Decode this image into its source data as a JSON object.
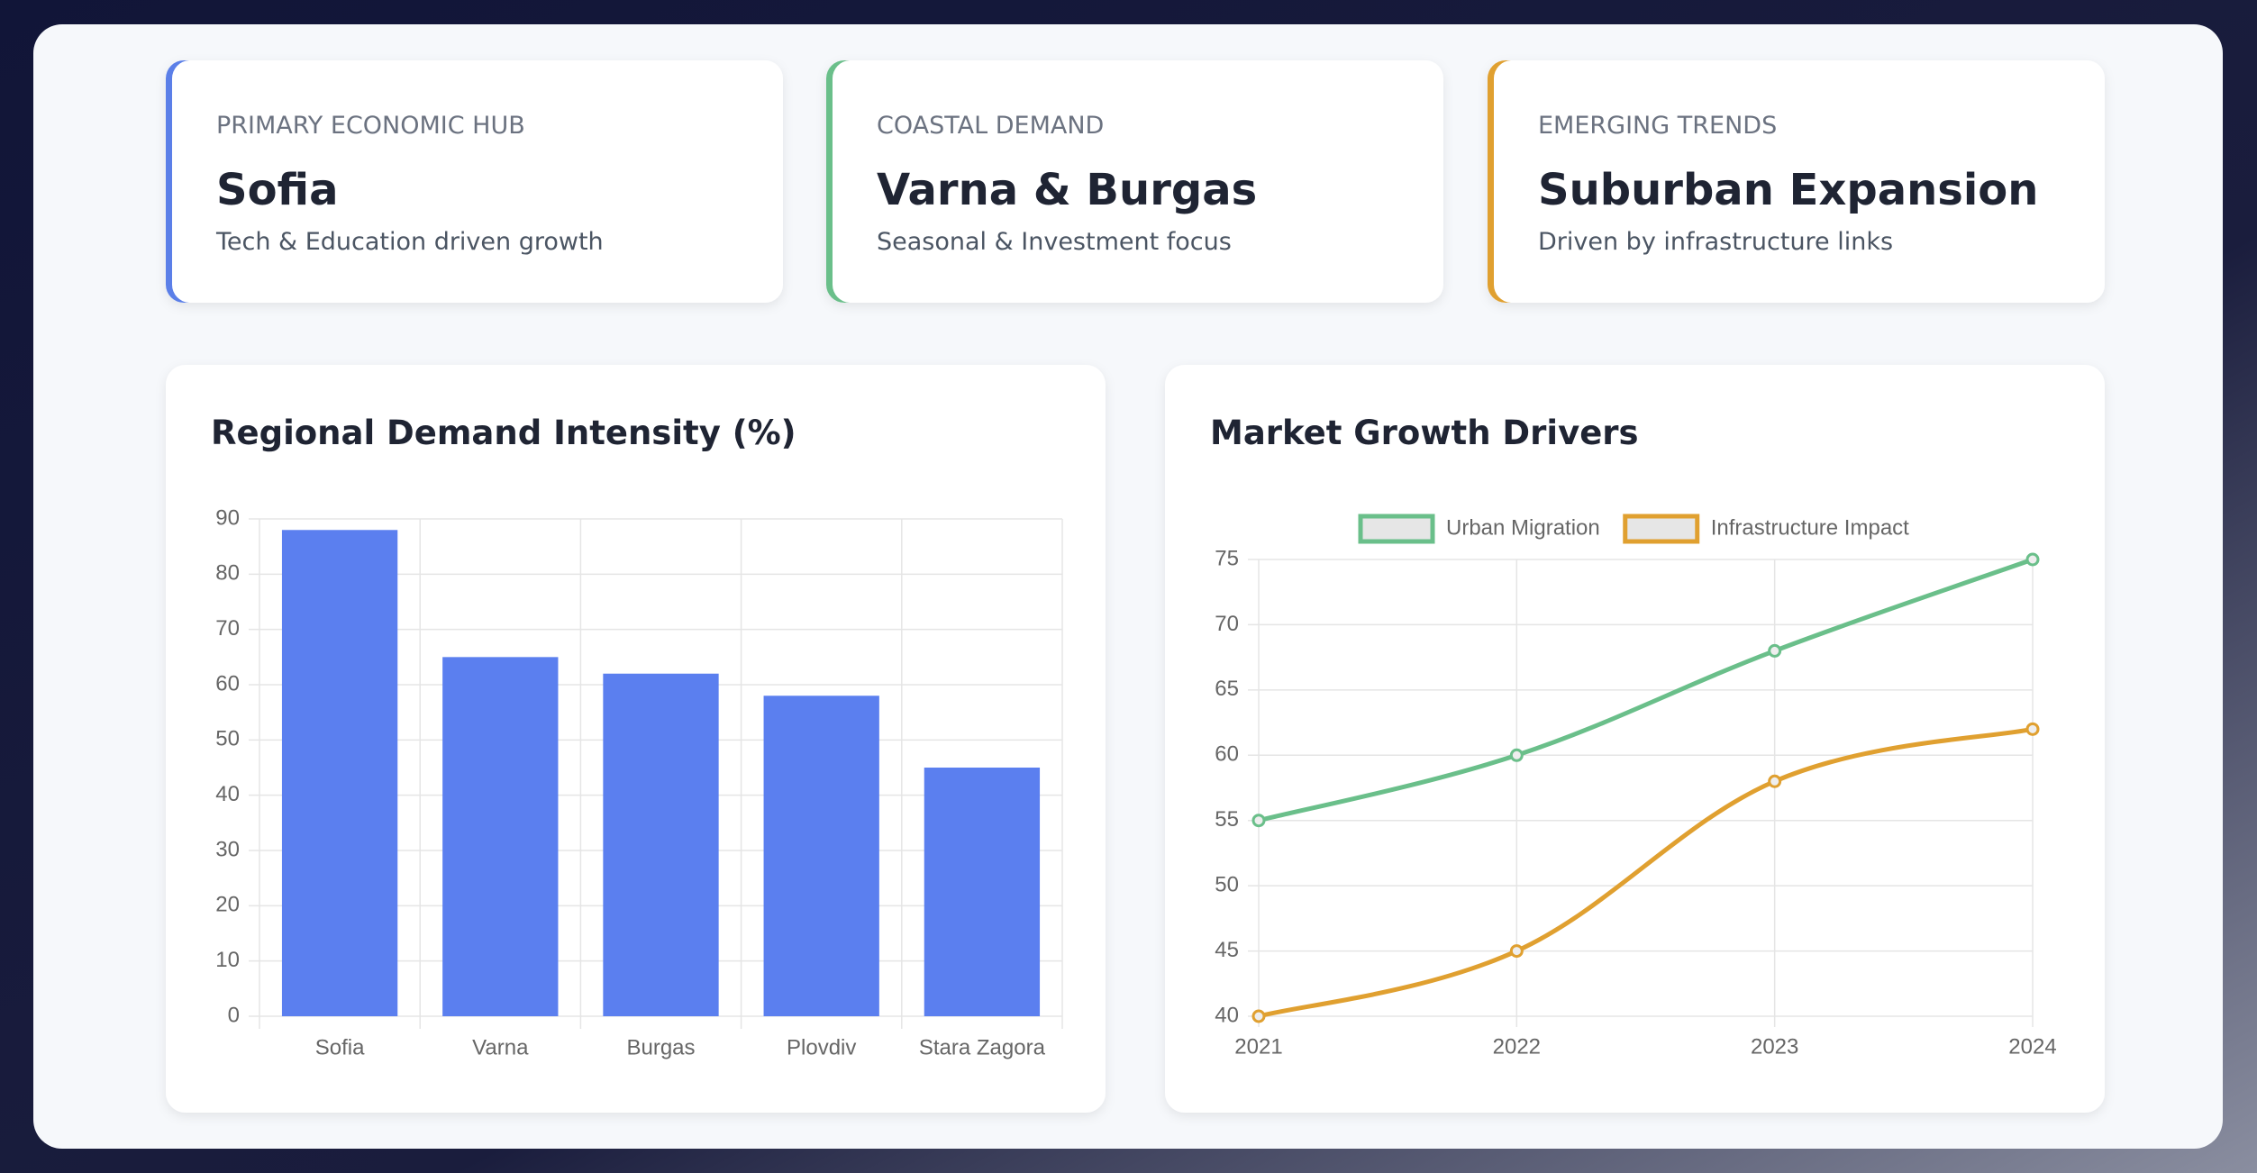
{
  "cards": [
    {
      "label": "PRIMARY ECONOMIC HUB",
      "title": "Sofia",
      "subtitle": "Tech & Education driven growth",
      "color": "#5b7fe8"
    },
    {
      "label": "COASTAL DEMAND",
      "title": "Varna & Burgas",
      "subtitle": "Seasonal & Investment focus",
      "color": "#6abf8a"
    },
    {
      "label": "EMERGING TRENDS",
      "title": "Suburban Expansion",
      "subtitle": "Driven by infrastructure links",
      "color": "#e0a030"
    }
  ],
  "chart_data": [
    {
      "type": "bar",
      "title": "Regional Demand Intensity (%)",
      "categories": [
        "Sofia",
        "Varna",
        "Burgas",
        "Plovdiv",
        "Stara Zagora"
      ],
      "values": [
        88,
        65,
        62,
        58,
        45
      ],
      "color": "#5b7fef",
      "ylim": [
        0,
        90
      ],
      "yticks": [
        0,
        10,
        20,
        30,
        40,
        50,
        60,
        70,
        80,
        90
      ],
      "grid": true
    },
    {
      "type": "line",
      "title": "Market Growth Drivers",
      "categories": [
        "2021",
        "2022",
        "2023",
        "2024"
      ],
      "series": [
        {
          "name": "Urban Migration",
          "color": "#6abf8a",
          "values": [
            55,
            60,
            68,
            75
          ]
        },
        {
          "name": "Infrastructure Impact",
          "color": "#e0a030",
          "values": [
            40,
            45,
            58,
            62
          ]
        }
      ],
      "ylim": [
        40,
        75
      ],
      "yticks": [
        40,
        45,
        50,
        55,
        60,
        65,
        70,
        75
      ],
      "grid": true,
      "legend": "top"
    }
  ]
}
